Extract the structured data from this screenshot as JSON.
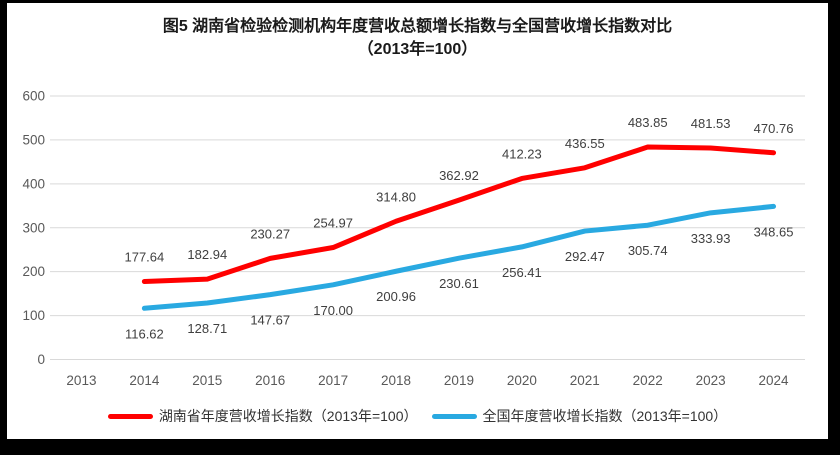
{
  "title": {
    "line1": "图5 湖南省检验检测机构年度营收总额增长指数与全国营收增长指数对比",
    "line2": "（2013年=100）"
  },
  "chart_data": {
    "type": "line",
    "categories": [
      "2013",
      "2014",
      "2015",
      "2016",
      "2017",
      "2018",
      "2019",
      "2020",
      "2021",
      "2022",
      "2023",
      "2024"
    ],
    "series": [
      {
        "name": "湖南省年度营收增长指数（2013年=100）",
        "color": "#ff0000",
        "label_position": "above",
        "values": [
          null,
          177.64,
          182.94,
          230.27,
          254.97,
          314.8,
          362.92,
          412.23,
          436.55,
          483.85,
          481.53,
          470.76
        ]
      },
      {
        "name": "全国年度营收增长指数（2013年=100）",
        "color": "#29a9e1",
        "label_position": "below",
        "values": [
          null,
          116.62,
          128.71,
          147.67,
          170.0,
          200.96,
          230.61,
          256.41,
          292.47,
          305.74,
          333.93,
          348.65
        ]
      }
    ],
    "ylim": [
      0,
      600
    ],
    "yticks": [
      0,
      100,
      200,
      300,
      400,
      500,
      600
    ],
    "grid": true,
    "legend_position": "bottom",
    "colors": {
      "gridline": "#d9d9d9",
      "axis_label": "#595959",
      "data_label": "#3f3f3f",
      "background": "#ffffff",
      "frame_border": "#000000"
    }
  },
  "legend": {
    "items": [
      {
        "label": "湖南省年度营收增长指数（2013年=100）",
        "color": "#ff0000"
      },
      {
        "label": "全国年度营收增长指数（2013年=100）",
        "color": "#29a9e1"
      }
    ]
  }
}
